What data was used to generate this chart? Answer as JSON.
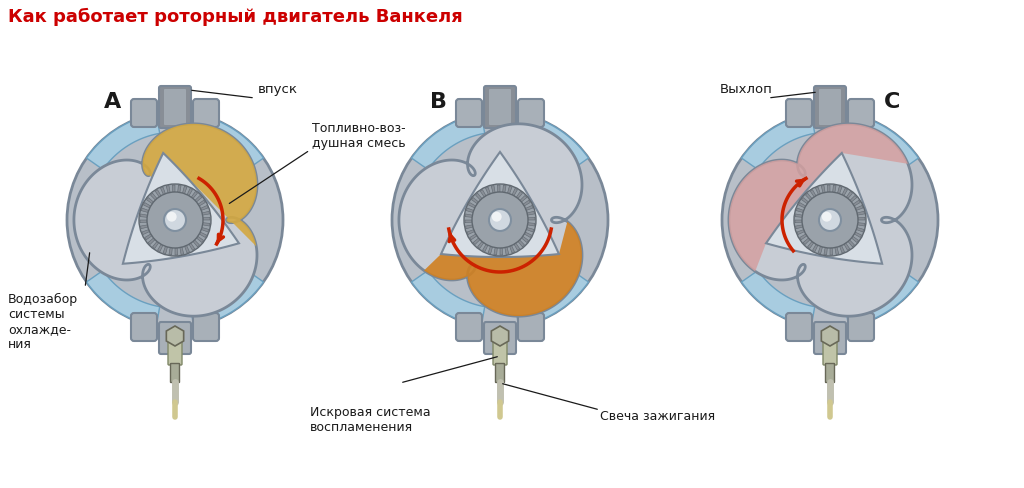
{
  "title": "Как работает роторный двигатель Ванкеля",
  "title_color": "#cc0000",
  "title_fontsize": 13,
  "bg_color": "#ffffff",
  "labels": {
    "A": "A",
    "B": "B",
    "C": "C",
    "vpusk": "впуск",
    "vyhlop": "Выхлоп",
    "fuel_mix": "Топливно-воз-\nдушная смесь",
    "water": "Водозабор\nсистемы\nохлажде-\nния",
    "spark_system": "Искровая система\nвоспламенения",
    "spark_plug": "Свеча зажигания"
  },
  "colors": {
    "outer_ring": "#b8bfc8",
    "outer_ring_edge": "#7a8898",
    "outer_ring_dark": "#8a9aaa",
    "blue_panel": "#a8cce0",
    "blue_panel_edge": "#6aa0c0",
    "inner_bg": "#c8cdd5",
    "inner_bg2": "#d5dae0",
    "rotor_face": "#c0c8d0",
    "rotor_light": "#d8dfe6",
    "rotor_edge": "#7a8898",
    "gear_body": "#9aa2aa",
    "gear_edge": "#606870",
    "gear_teeth": "#888e96",
    "shaft_body": "#d0d8e0",
    "shaft_edge": "#8090a0",
    "fuel_color": "#d4a840",
    "exhaust_color": "#d4a0a0",
    "arrow_color": "#cc2200",
    "flange_color": "#a8b0b8",
    "plug_body": "#b0b8a0",
    "plug_hex": "#c8c8b0",
    "plug_tip": "#909888",
    "top_port_dark": "#888e96",
    "label_color": "#1a1a1a"
  }
}
